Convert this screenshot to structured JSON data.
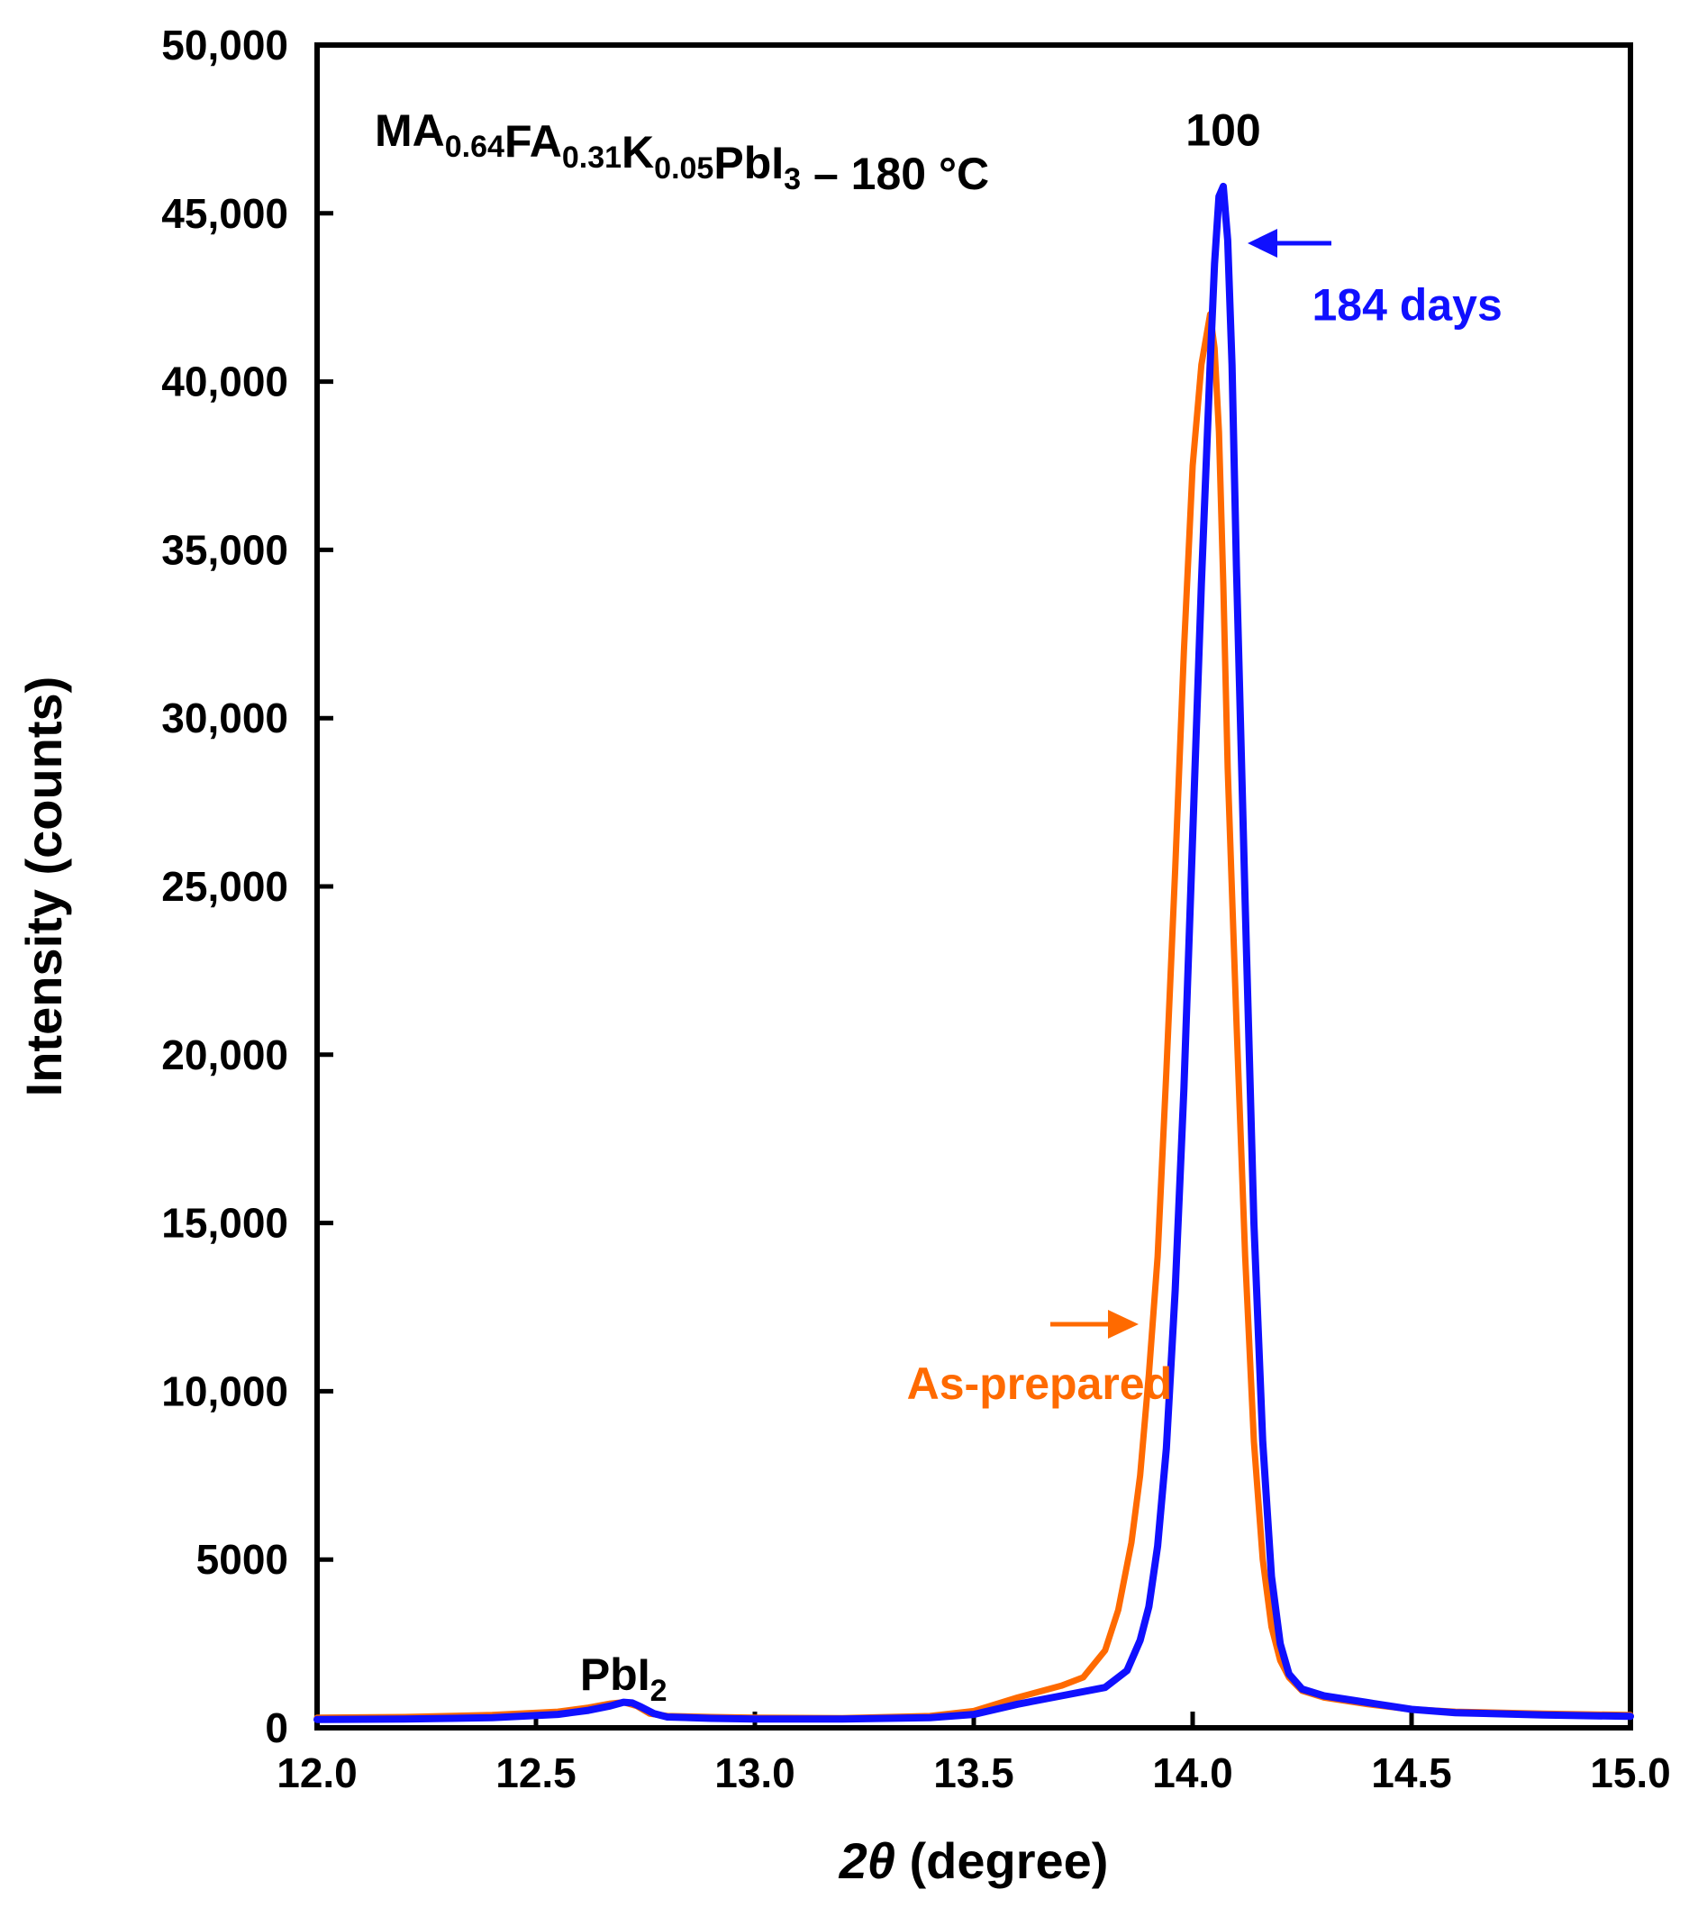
{
  "chart_data": {
    "type": "line",
    "title": {
      "parts": [
        {
          "text": "MA",
          "sub": false
        },
        {
          "text": "0.64",
          "sub": true
        },
        {
          "text": "FA",
          "sub": false
        },
        {
          "text": "0.31",
          "sub": true
        },
        {
          "text": "K",
          "sub": false
        },
        {
          "text": "0.05",
          "sub": true
        },
        {
          "text": "PbI",
          "sub": false
        },
        {
          "text": "3",
          "sub": true
        },
        {
          "text": " – 180 °C",
          "sub": false
        }
      ]
    },
    "xlabel": {
      "symbol": "2θ",
      "rest": " (degree)"
    },
    "ylabel": "Intensity (counts)",
    "xlim": [
      12.0,
      15.0
    ],
    "ylim": [
      0,
      50000
    ],
    "xticks": [
      12.0,
      12.5,
      13.0,
      13.5,
      14.0,
      14.5,
      15.0
    ],
    "xtick_labels": [
      "12.0",
      "12.5",
      "13.0",
      "13.5",
      "14.0",
      "14.5",
      "15.0"
    ],
    "yticks": [
      0,
      5000,
      10000,
      15000,
      20000,
      25000,
      30000,
      35000,
      40000,
      45000,
      50000
    ],
    "ytick_labels": [
      "0",
      "5000",
      "10,000",
      "15,000",
      "20,000",
      "25,000",
      "30,000",
      "35,000",
      "40,000",
      "45,000",
      "50,000"
    ],
    "grid": false,
    "series": [
      {
        "name": "As-prepared",
        "color": "#ff6a00",
        "x": [
          12.0,
          12.2,
          12.4,
          12.55,
          12.62,
          12.67,
          12.7,
          12.73,
          12.76,
          12.8,
          12.9,
          13.0,
          13.2,
          13.4,
          13.5,
          13.6,
          13.7,
          13.75,
          13.8,
          13.83,
          13.86,
          13.88,
          13.9,
          13.92,
          13.94,
          13.96,
          13.98,
          14.0,
          14.02,
          14.04,
          14.05,
          14.06,
          14.07,
          14.08,
          14.1,
          14.12,
          14.14,
          14.16,
          14.18,
          14.2,
          14.22,
          14.25,
          14.3,
          14.4,
          14.5,
          14.6,
          14.8,
          15.0
        ],
        "y": [
          300,
          320,
          380,
          480,
          600,
          720,
          760,
          650,
          420,
          350,
          320,
          300,
          290,
          350,
          500,
          900,
          1250,
          1500,
          2300,
          3500,
          5500,
          7500,
          10500,
          14000,
          19500,
          25500,
          32000,
          37500,
          40500,
          42000,
          41000,
          38500,
          34000,
          28500,
          21000,
          14000,
          8500,
          5000,
          3000,
          2000,
          1500,
          1100,
          900,
          700,
          550,
          480,
          420,
          380
        ]
      },
      {
        "name": "184 days",
        "color": "#1010ff",
        "x": [
          12.0,
          12.2,
          12.4,
          12.55,
          12.62,
          12.67,
          12.7,
          12.72,
          12.74,
          12.77,
          12.8,
          12.9,
          13.0,
          13.2,
          13.4,
          13.5,
          13.6,
          13.7,
          13.8,
          13.85,
          13.88,
          13.9,
          13.92,
          13.94,
          13.96,
          13.98,
          14.0,
          14.02,
          14.04,
          14.05,
          14.06,
          14.07,
          14.08,
          14.09,
          14.1,
          14.12,
          14.14,
          14.16,
          14.18,
          14.2,
          14.22,
          14.25,
          14.3,
          14.4,
          14.5,
          14.6,
          14.8,
          15.0
        ],
        "y": [
          250,
          260,
          300,
          400,
          520,
          650,
          760,
          740,
          620,
          420,
          320,
          280,
          260,
          260,
          300,
          400,
          700,
          950,
          1200,
          1700,
          2600,
          3600,
          5400,
          8300,
          13000,
          19000,
          26500,
          34000,
          40500,
          43500,
          45500,
          45800,
          44200,
          40500,
          34500,
          24500,
          15000,
          8500,
          4500,
          2500,
          1600,
          1150,
          950,
          750,
          550,
          450,
          380,
          340
        ]
      }
    ],
    "annotations": [
      {
        "text": "100",
        "x": 14.07,
        "y": 47500,
        "color": "#000000"
      },
      {
        "text": "184 days",
        "color": "#1010ff",
        "x": 14.49,
        "y": 42300
      },
      {
        "text": "As-prepared",
        "color": "#ff6a00",
        "x": 13.65,
        "y": 10250
      },
      {
        "text_parts": [
          {
            "text": "PbI",
            "sub": false
          },
          {
            "text": "2",
            "sub": true
          }
        ],
        "x": 12.7,
        "y": 1600,
        "color": "#000000"
      }
    ]
  }
}
